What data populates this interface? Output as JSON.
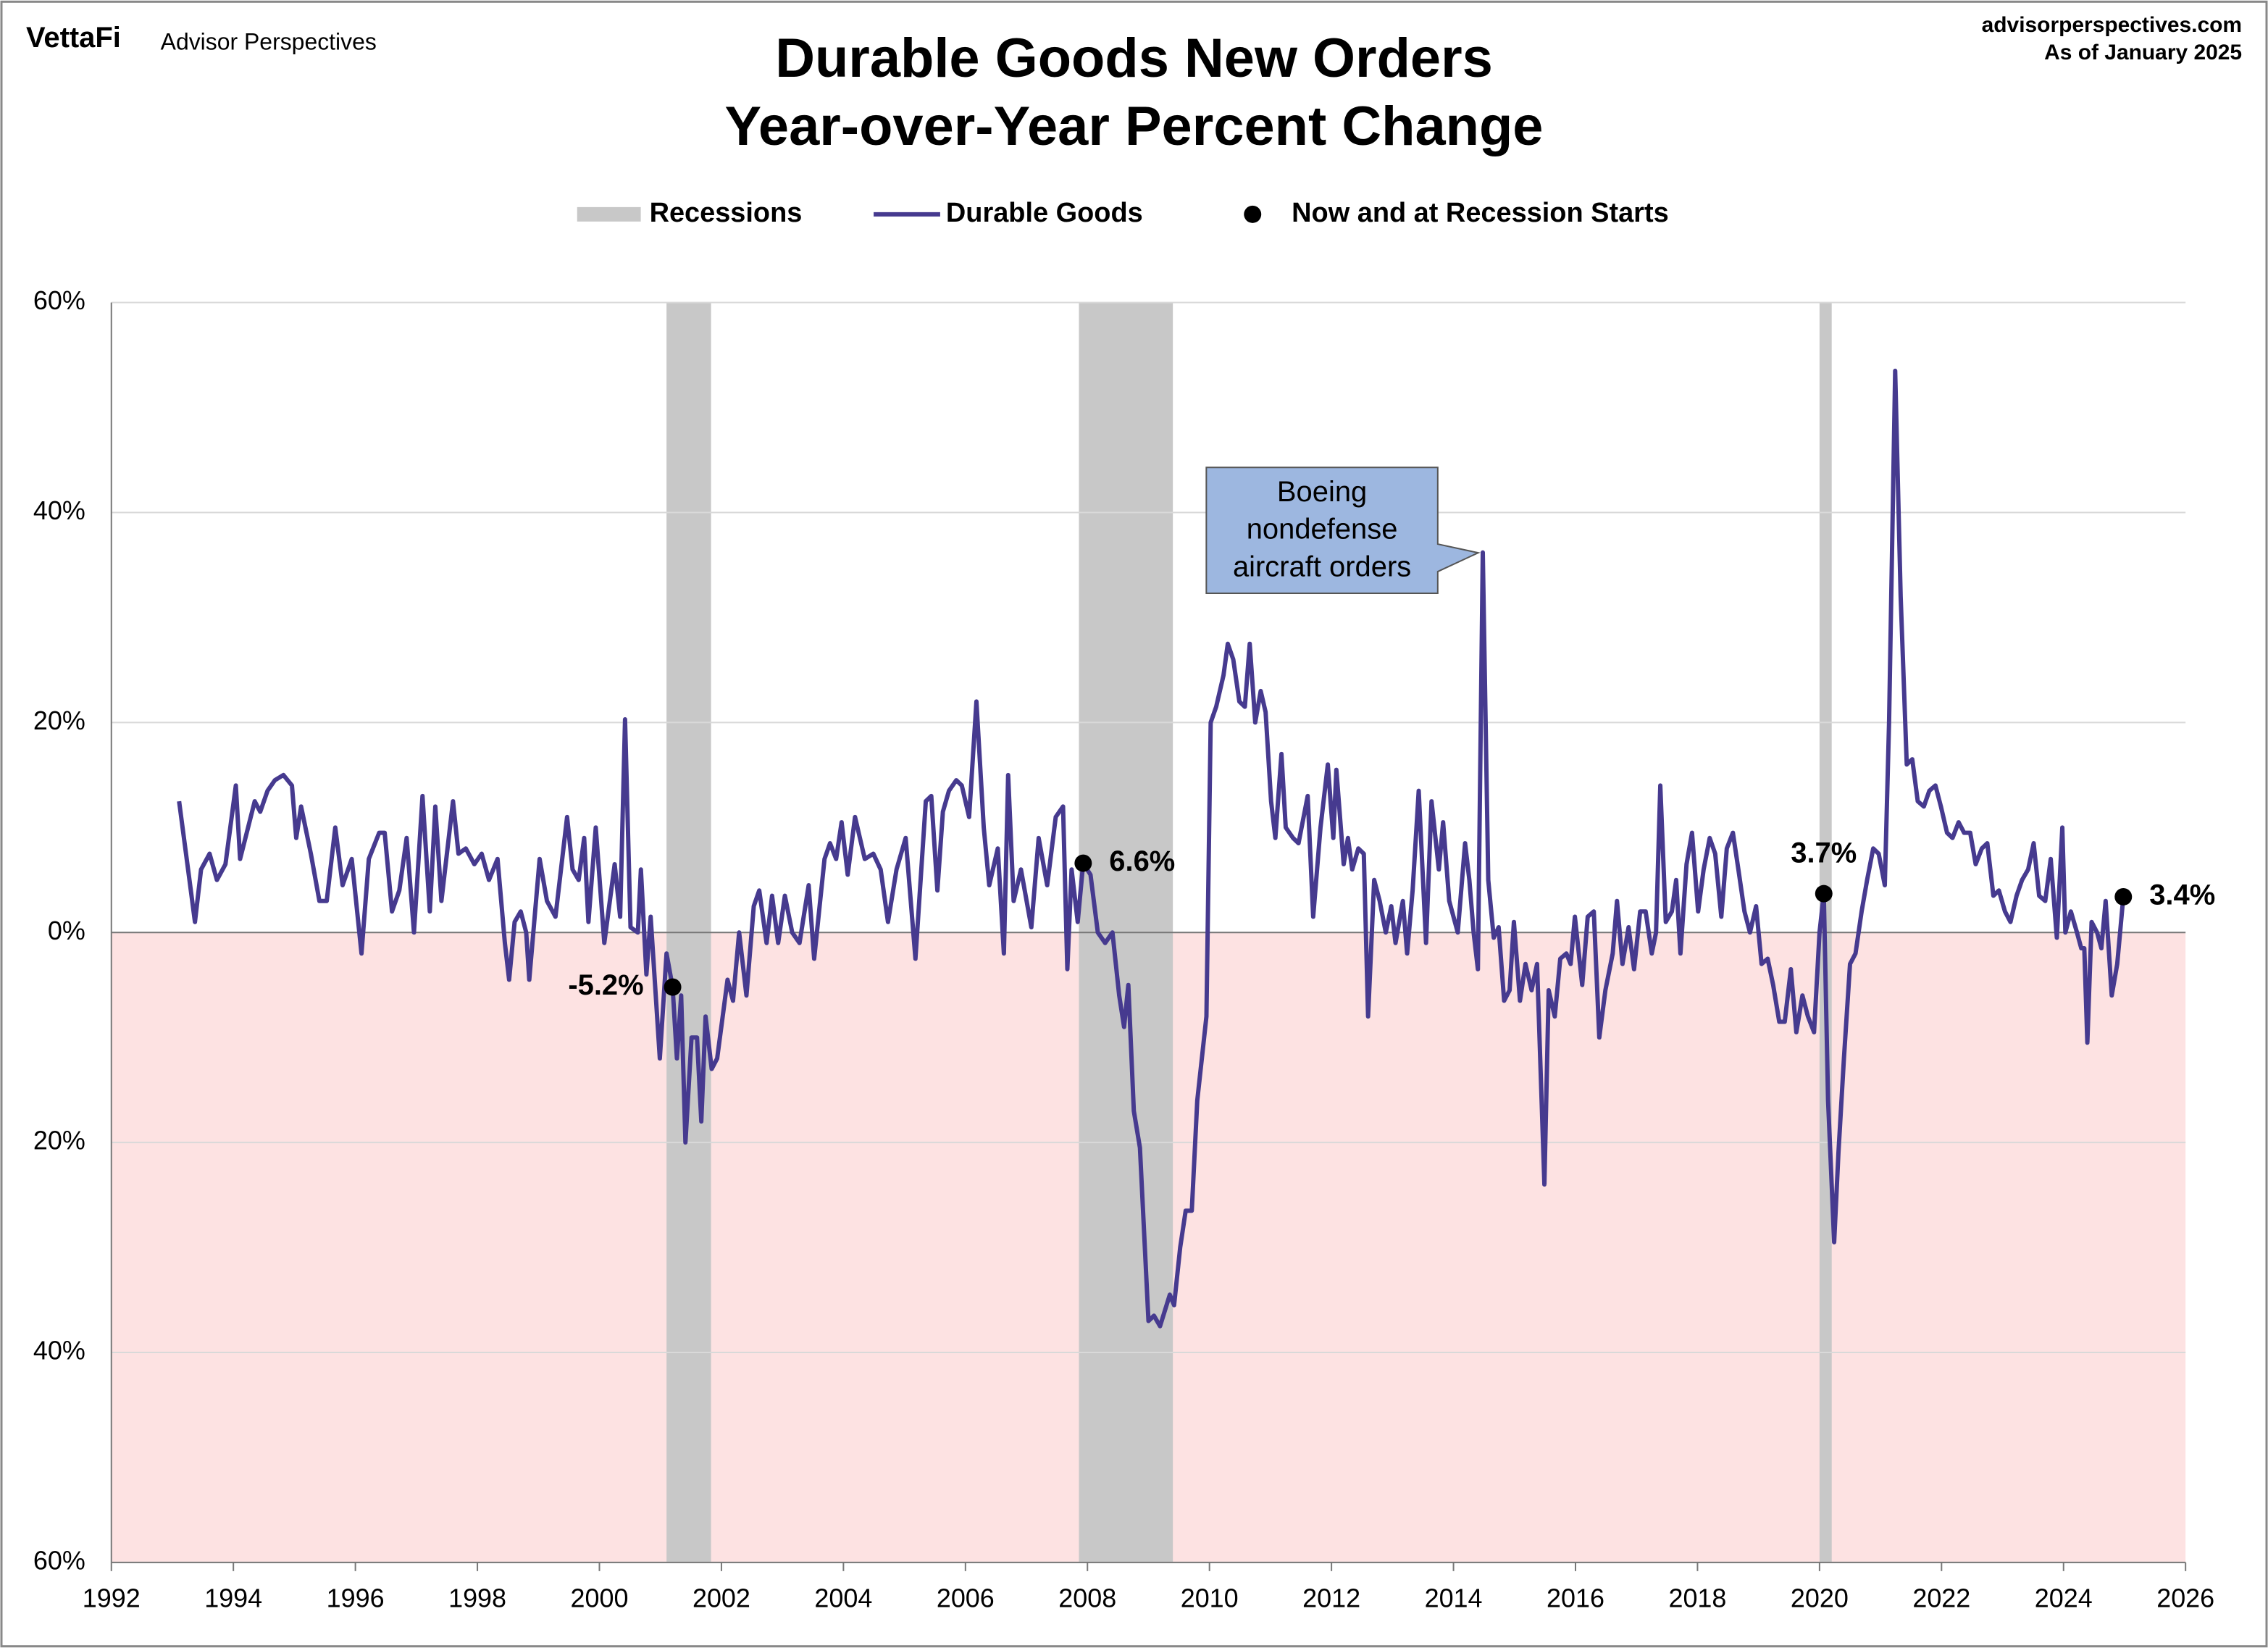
{
  "header": {
    "brand": "VettaFi",
    "brand_sub": "Advisor Perspectives",
    "site": "advisorperspectives.com",
    "as_of": "As of January 2025"
  },
  "chart_data": {
    "type": "line",
    "title": [
      "Durable Goods New Orders",
      "Year-over-Year Percent Change"
    ],
    "annotation": [
      "Boeing",
      "nondefense",
      "aircraft orders"
    ],
    "xlim": [
      1992,
      2026
    ],
    "xticks": [
      1992,
      1994,
      1996,
      1998,
      2000,
      2002,
      2004,
      2006,
      2008,
      2010,
      2012,
      2014,
      2016,
      2018,
      2020,
      2022,
      2024,
      2026
    ],
    "ylim": [
      -60,
      60
    ],
    "yticks": [
      {
        "value": 60,
        "label": "60%"
      },
      {
        "value": 40,
        "label": "40%"
      },
      {
        "value": 20,
        "label": "20%"
      },
      {
        "value": 0,
        "label": "0%"
      },
      {
        "value": -20,
        "label": "20%"
      },
      {
        "value": -40,
        "label": "40%"
      },
      {
        "value": -60,
        "label": "60%"
      }
    ],
    "grid": true,
    "negative_fill": "#fde2e2",
    "negative_label_color": "#ff0000",
    "recessions": {
      "name": "Recessions",
      "color": "#c8c8c8",
      "ranges": [
        [
          2001.1,
          2001.83
        ],
        [
          2007.86,
          2009.4
        ],
        [
          2020.0,
          2020.2
        ]
      ]
    },
    "x": [
      1993.11,
      1993.28,
      1993.37,
      1993.47,
      1993.61,
      1993.73,
      1993.87,
      1994.04,
      1994.11,
      1994.35,
      1994.44,
      1994.56,
      1994.68,
      1994.82,
      1994.96,
      1995.03,
      1995.11,
      1995.27,
      1995.41,
      1995.53,
      1995.67,
      1995.79,
      1995.94,
      1996.1,
      1996.22,
      1996.39,
      1996.48,
      1996.6,
      1996.72,
      1996.84,
      1996.96,
      1997.1,
      1997.22,
      1997.31,
      1997.41,
      1997.6,
      1997.69,
      1997.81,
      1997.95,
      1998.07,
      1998.19,
      1998.33,
      1998.45,
      1998.52,
      1998.61,
      1998.71,
      1998.8,
      1998.85,
      1999.02,
      1999.14,
      1999.28,
      1999.47,
      1999.56,
      1999.66,
      1999.75,
      1999.82,
      1999.94,
      2000.08,
      2000.25,
      2000.34,
      2000.42,
      2000.51,
      2000.63,
      2000.68,
      2000.77,
      2000.84,
      2000.99,
      2001.1,
      2001.2,
      2001.27,
      2001.34,
      2001.41,
      2001.51,
      2001.6,
      2001.67,
      2001.74,
      2001.84,
      2001.93,
      2002.1,
      2002.19,
      2002.29,
      2002.41,
      2002.53,
      2002.62,
      2002.74,
      2002.83,
      2002.93,
      2003.04,
      2003.16,
      2003.28,
      2003.43,
      2003.52,
      2003.69,
      2003.78,
      2003.88,
      2003.97,
      2004.07,
      2004.19,
      2004.35,
      2004.49,
      2004.61,
      2004.73,
      2004.87,
      2005.02,
      2005.18,
      2005.35,
      2005.44,
      2005.54,
      2005.63,
      2005.73,
      2005.85,
      2005.94,
      2006.06,
      2006.18,
      2006.3,
      2006.39,
      2006.53,
      2006.63,
      2006.7,
      2006.79,
      2006.91,
      2007.08,
      2007.2,
      2007.34,
      2007.48,
      2007.6,
      2007.67,
      2007.74,
      2007.84,
      2007.93,
      2008.05,
      2008.17,
      2008.29,
      2008.41,
      2008.52,
      2008.6,
      2008.67,
      2008.76,
      2008.86,
      2009.0,
      2009.09,
      2009.19,
      2009.35,
      2009.42,
      2009.52,
      2009.61,
      2009.71,
      2009.8,
      2009.95,
      2010.02,
      2010.11,
      2010.23,
      2010.3,
      2010.39,
      2010.49,
      2010.58,
      2010.66,
      2010.75,
      2010.84,
      2010.92,
      2011.01,
      2011.08,
      2011.18,
      2011.25,
      2011.37,
      2011.46,
      2011.61,
      2011.7,
      2011.82,
      2011.94,
      2012.03,
      2012.08,
      2012.2,
      2012.27,
      2012.34,
      2012.44,
      2012.53,
      2012.6,
      2012.7,
      2012.79,
      2012.89,
      2012.98,
      2013.05,
      2013.17,
      2013.24,
      2013.33,
      2013.43,
      2013.55,
      2013.64,
      2013.76,
      2013.83,
      2013.93,
      2014.07,
      2014.19,
      2014.26,
      2014.33,
      2014.4,
      2014.48,
      2014.57,
      2014.66,
      2014.74,
      2014.83,
      2014.92,
      2014.99,
      2015.09,
      2015.18,
      2015.28,
      2015.37,
      2015.49,
      2015.56,
      2015.66,
      2015.75,
      2015.85,
      2015.92,
      2015.99,
      2016.11,
      2016.2,
      2016.3,
      2016.39,
      2016.49,
      2016.61,
      2016.68,
      2016.77,
      2016.87,
      2016.96,
      2017.06,
      2017.15,
      2017.25,
      2017.32,
      2017.39,
      2017.48,
      2017.58,
      2017.65,
      2017.72,
      2017.82,
      2017.91,
      2018.01,
      2018.1,
      2018.2,
      2018.29,
      2018.39,
      2018.48,
      2018.58,
      2018.67,
      2018.77,
      2018.86,
      2018.96,
      2019.05,
      2019.15,
      2019.24,
      2019.34,
      2019.43,
      2019.53,
      2019.62,
      2019.72,
      2019.81,
      2019.91,
      2020.0,
      2020.07,
      2020.14,
      2020.24,
      2020.31,
      2020.4,
      2020.5,
      2020.59,
      2020.69,
      2020.78,
      2020.88,
      2020.97,
      2021.07,
      2021.14,
      2021.24,
      2021.33,
      2021.43,
      2021.52,
      2021.61,
      2021.71,
      2021.8,
      2021.9,
      2021.99,
      2022.09,
      2022.18,
      2022.28,
      2022.37,
      2022.47,
      2022.56,
      2022.66,
      2022.75,
      2022.85,
      2022.94,
      2023.04,
      2023.13,
      2023.23,
      2023.32,
      2023.42,
      2023.51,
      2023.6,
      2023.7,
      2023.79,
      2023.89,
      2023.98,
      2024.03,
      2024.12,
      2024.22,
      2024.29,
      2024.34,
      2024.39,
      2024.46,
      2024.55,
      2024.62,
      2024.69,
      2024.79,
      2024.88,
      2024.98
    ],
    "series": [
      {
        "name": "Durable Goods",
        "color": "#463a8f",
        "values": [
          12.5,
          5,
          1,
          6,
          7.5,
          5,
          6.5,
          14,
          7,
          12.5,
          11.5,
          13.5,
          14.5,
          15,
          14,
          9,
          12,
          7.5,
          3,
          3,
          10,
          4.5,
          7,
          -2,
          7,
          9.5,
          9.5,
          2,
          4,
          9,
          0,
          13,
          2,
          12,
          3,
          12.5,
          7.5,
          8,
          6.5,
          7.5,
          5,
          7,
          -1,
          -4.5,
          1,
          2,
          0,
          -4.5,
          7,
          3,
          1.5,
          11,
          6,
          5,
          9,
          1,
          10,
          -1,
          6.5,
          1.5,
          20.3,
          0.5,
          0,
          6,
          -4,
          1.5,
          -12,
          -2,
          -5.2,
          -12,
          -6,
          -20,
          -10,
          -10,
          -18,
          -8,
          -13,
          -12,
          -4.5,
          -6.5,
          0,
          -6,
          2.5,
          4,
          -1,
          3.5,
          -1,
          3.5,
          0,
          -1,
          4.5,
          -2.5,
          7,
          8.5,
          7,
          10.5,
          5.5,
          11,
          7,
          7.5,
          6,
          1,
          6,
          9,
          -2.5,
          12.5,
          13,
          4,
          11.5,
          13.5,
          14.5,
          14,
          11,
          22,
          10,
          4.5,
          8,
          -2,
          15,
          3,
          6,
          0.5,
          9,
          4.5,
          11,
          12,
          -3.5,
          6,
          1,
          6.6,
          5.5,
          0,
          -1,
          0,
          -6,
          -9,
          -5,
          -17,
          -20.5,
          -37,
          -36.5,
          -37.5,
          -34.5,
          -35.5,
          -30,
          -26.5,
          -26.5,
          -16,
          -8,
          20,
          21.5,
          24.5,
          27.5,
          26,
          22,
          21.5,
          27.5,
          20,
          23,
          21,
          12.5,
          9,
          17,
          10,
          9,
          8.5,
          13,
          1.5,
          10,
          16,
          9,
          15.5,
          6.5,
          9,
          6,
          8,
          7.5,
          -8,
          5,
          3,
          0,
          2.5,
          -1,
          3,
          -2,
          4,
          13.5,
          -1,
          12.5,
          6,
          10.5,
          3,
          0,
          8.5,
          5,
          0,
          -3.5,
          36.2,
          5,
          -0.5,
          0.5,
          -6.5,
          -5.5,
          1,
          -6.5,
          -3,
          -5.5,
          -3,
          -24,
          -5.5,
          -8,
          -2.5,
          -2,
          -3,
          1.5,
          -5,
          1.5,
          2,
          -10,
          -5.5,
          -2,
          3,
          -3,
          0.5,
          -3.5,
          2,
          2,
          -2,
          0,
          14,
          1,
          2,
          5,
          -2,
          6.5,
          9.5,
          2,
          6,
          9,
          7.5,
          1.5,
          8,
          9.5,
          6,
          2,
          0,
          2.5,
          -3,
          -2.5,
          -5,
          -8.5,
          -8.5,
          -3.5,
          -9.5,
          -6,
          -8,
          -9.5,
          0,
          3.7,
          -16,
          -29.5,
          -21,
          -12,
          -3,
          -2,
          2,
          5,
          8,
          7.5,
          4.5,
          20,
          53.5,
          32,
          16,
          16.5,
          12.5,
          12,
          13.5,
          14,
          12,
          9.5,
          9,
          10.5,
          9.5,
          9.5,
          6.5,
          8,
          8.5,
          3.5,
          4,
          2,
          1,
          3.5,
          5,
          6,
          8.5,
          3.5,
          3,
          7,
          -0.5,
          10,
          0,
          2,
          0,
          -1.5,
          -1.5,
          -10.5,
          1,
          0,
          -1.5,
          3,
          -6,
          -3,
          3.4
        ]
      }
    ],
    "markers": {
      "name": "Now and at Recession Starts",
      "color": "#000000",
      "x": [
        2001.2,
        2007.93,
        2020.07,
        2024.98
      ],
      "values": [
        -5.2,
        6.6,
        3.7,
        3.4
      ],
      "value_labels": [
        "-5.2%",
        "6.6%",
        "3.7%",
        "3.4%"
      ]
    }
  }
}
